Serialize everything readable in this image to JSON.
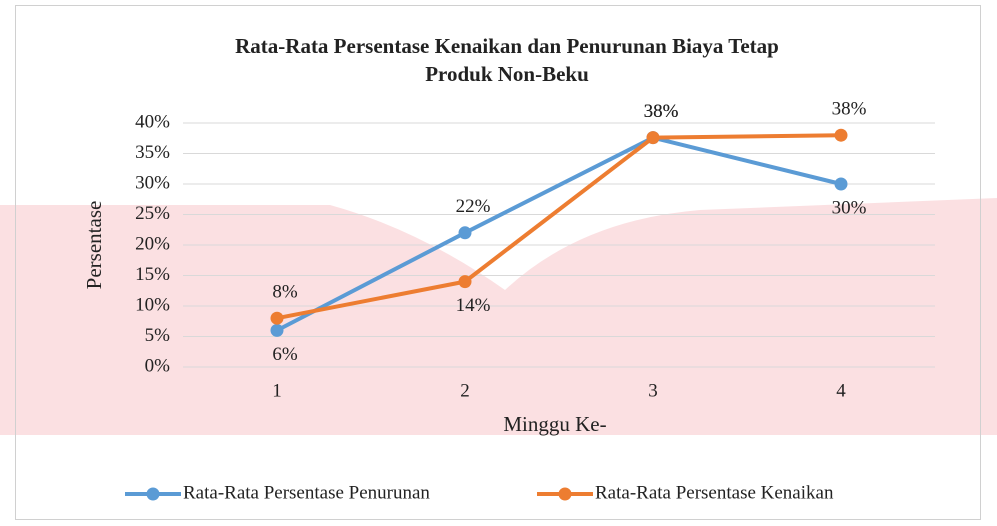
{
  "chart_data": {
    "type": "line",
    "title": [
      "Rata-Rata Persentase Kenaikan dan Penurunan Biaya Tetap",
      "Produk Non-Beku"
    ],
    "x_label": "Minggu Ke-",
    "y_label": "Persentase",
    "categories": [
      "1",
      "2",
      "3",
      "4"
    ],
    "series": [
      {
        "name": "Rata-Rata Persentase Penurunan",
        "color": "#5b9bd5",
        "values": [
          6,
          22,
          37.6,
          30
        ],
        "value_labels": [
          "6%",
          "22%",
          "38%",
          "30%"
        ]
      },
      {
        "name": "Rata-Rata Persentase Kenaikan",
        "color": "#ed7d31",
        "values": [
          8,
          14,
          37.6,
          38
        ],
        "value_labels": [
          "8%",
          "14%",
          "38%",
          "38%"
        ]
      }
    ],
    "ylim": [
      0,
      40
    ],
    "yticks": [
      {
        "value": 0,
        "label": "0%"
      },
      {
        "value": 5,
        "label": "5%"
      },
      {
        "value": 10,
        "label": "10%"
      },
      {
        "value": 15,
        "label": "15%"
      },
      {
        "value": 20,
        "label": "20%"
      },
      {
        "value": 25,
        "label": "25%"
      },
      {
        "value": 30,
        "label": "30%"
      },
      {
        "value": 35,
        "label": "35%"
      },
      {
        "value": 40,
        "label": "40%"
      }
    ],
    "grid": true,
    "legend": "bottom"
  }
}
